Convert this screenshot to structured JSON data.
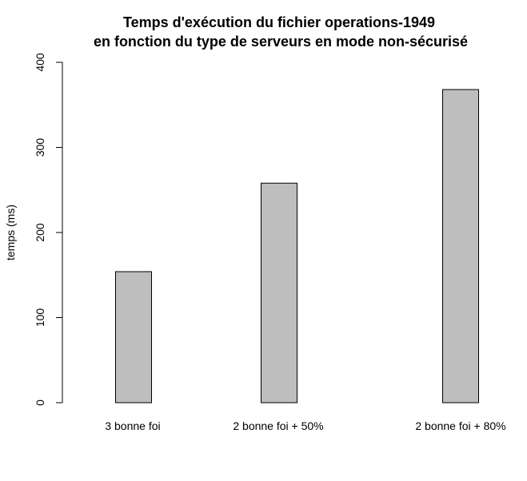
{
  "chart_data": {
    "type": "bar",
    "title_line1": "Temps d'exécution du fichier operations-1949",
    "title_line2": "en fonction du type de serveurs en mode non-sécurisé",
    "xlabel": "",
    "ylabel": "temps (ms)",
    "categories": [
      "3 bonne foi",
      "2 bonne foi + 50%",
      "2 bonne foi + 80%"
    ],
    "values": [
      154,
      258,
      368
    ],
    "ylim": [
      0,
      400
    ],
    "yticks": [
      "0",
      "100",
      "200",
      "300",
      "400"
    ],
    "grid": false,
    "bar_color": "#bebebe",
    "bar_border": "#000000"
  }
}
